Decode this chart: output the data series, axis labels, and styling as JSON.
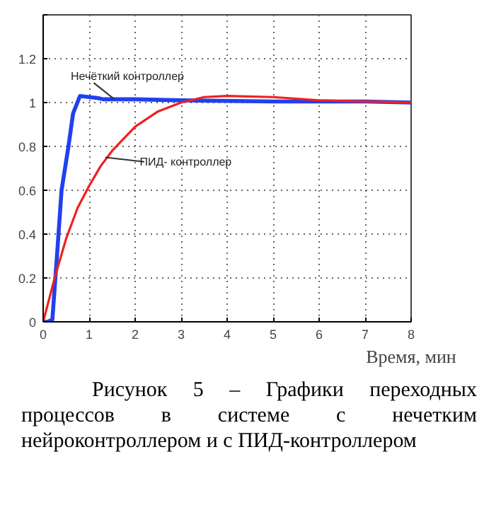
{
  "chart_data": {
    "type": "line",
    "xlabel": "Время, мин",
    "xlim": [
      0,
      8
    ],
    "xticks": [
      0,
      1,
      2,
      3,
      4,
      5,
      6,
      7,
      8
    ],
    "ylim": [
      0,
      1.4
    ],
    "yticks": [
      0,
      0.2,
      0.4,
      0.6,
      0.8,
      1,
      1.2,
      {
        "value": 1.4,
        "label": null
      }
    ],
    "grid": true,
    "line_style": "solid",
    "series": [
      {
        "name": "Нечёткий контроллер",
        "color": "#2040f0",
        "x": [
          0,
          0.1,
          0.2,
          0.3,
          0.4,
          0.55,
          0.65,
          0.8,
          1.2,
          1.3,
          2,
          3,
          5,
          7,
          8
        ],
        "values": [
          0,
          0,
          0.01,
          0.3,
          0.6,
          0.8,
          0.95,
          1.03,
          1.02,
          1.015,
          1.015,
          1.01,
          1.005,
          1.005,
          1.0
        ]
      },
      {
        "name": "ПИД- контроллер",
        "color": "#f02020",
        "x": [
          0,
          0.25,
          0.5,
          0.75,
          1,
          1.25,
          1.5,
          2,
          2.5,
          3,
          3.5,
          4,
          5,
          6,
          7,
          8
        ],
        "values": [
          0,
          0.2,
          0.38,
          0.52,
          0.62,
          0.71,
          0.78,
          0.89,
          0.96,
          1.0,
          1.025,
          1.03,
          1.025,
          1.01,
          1.005,
          1.0
        ]
      }
    ],
    "annotations": [
      "Рисунок 5 – Графики переходных процессов в системе с нечетким нейроконтроллером и с ПИД-контроллером"
    ]
  }
}
